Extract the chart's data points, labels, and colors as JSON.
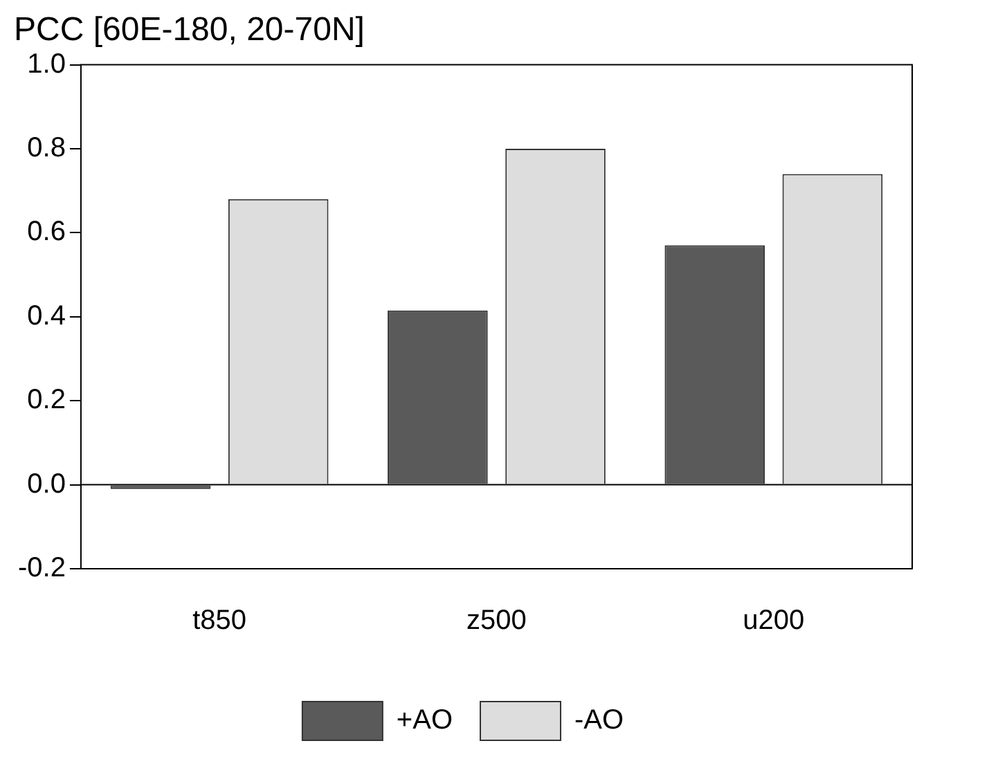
{
  "chart_data": {
    "type": "bar",
    "title": "PCC [60E-180, 20-70N]",
    "categories": [
      "t850",
      "z500",
      "u200"
    ],
    "series": [
      {
        "name": "+AO",
        "color": "#5a5a5a",
        "values": [
          -0.01,
          0.415,
          0.57
        ]
      },
      {
        "name": "-AO",
        "color": "#dddddd",
        "values": [
          0.68,
          0.8,
          0.74
        ]
      }
    ],
    "ylim": [
      -0.2,
      1.0
    ],
    "yticks": [
      {
        "value": -0.2,
        "label": "-0.2"
      },
      {
        "value": 0,
        "label": "0.0"
      },
      {
        "value": 0.2,
        "label": "0.2"
      },
      {
        "value": 0.4,
        "label": "0.4"
      },
      {
        "value": 0.6,
        "label": "0.6"
      },
      {
        "value": 0.8,
        "label": "0.8"
      },
      {
        "value": 1.0,
        "label": "1.0"
      }
    ],
    "ref_lines": [
      {
        "axis": "y",
        "value": 0
      }
    ],
    "grid": false,
    "legend": "bottom"
  }
}
